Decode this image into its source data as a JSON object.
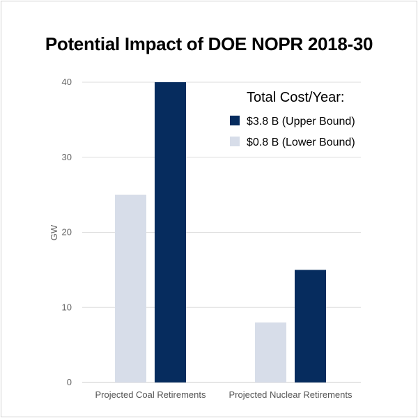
{
  "chart_data": {
    "type": "bar",
    "title": "Potential Impact of DOE NOPR 2018-30",
    "xlabel": "",
    "ylabel": "GW",
    "ylim": [
      0,
      40
    ],
    "yticks": [
      "0",
      "10",
      "20",
      "30",
      "40"
    ],
    "categories": [
      "Projected Coal Retirements",
      "Projected Nuclear Retirements"
    ],
    "legend_title": "Total Cost/Year:",
    "legend_position": "top-right",
    "grid": true,
    "series": [
      {
        "name": "$0.8 B (Lower Bound)",
        "values": [
          25,
          8
        ],
        "color": "#d7dde9"
      },
      {
        "name": "$3.8 B (Upper Bound)",
        "values": [
          40,
          15
        ],
        "color": "#062c5e"
      }
    ],
    "legend_order": [
      1,
      0
    ]
  }
}
